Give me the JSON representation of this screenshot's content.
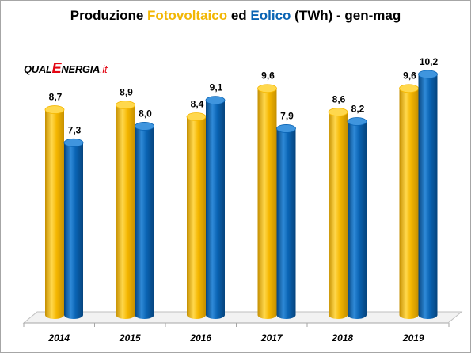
{
  "title": {
    "part1": "Produzione ",
    "part2": "Fotovoltaico",
    "part3": " ed ",
    "part4": "Eolico",
    "part5": " (TWh)",
    "part6": " - gen-mag"
  },
  "logo": {
    "prefix": "QUAL",
    "e": "E",
    "suffix": "NERGIA",
    "tld": ".it"
  },
  "colors": {
    "pv": "#f5b700",
    "pv_dark": "#c58f00",
    "wind": "#0a64b4",
    "wind_dark": "#06447d"
  },
  "chart_data": {
    "type": "bar",
    "categories": [
      "2014",
      "2015",
      "2016",
      "2017",
      "2018",
      "2019"
    ],
    "series": [
      {
        "name": "Fotovoltaico",
        "values": [
          8.7,
          8.9,
          8.4,
          9.6,
          8.6,
          9.6
        ],
        "labels": [
          "8,7",
          "8,9",
          "8,4",
          "9,6",
          "8,6",
          "9,6"
        ]
      },
      {
        "name": "Eolico",
        "values": [
          7.3,
          8.0,
          9.1,
          7.9,
          8.2,
          10.2
        ],
        "labels": [
          "7,3",
          "8,0",
          "9,1",
          "7,9",
          "8,2",
          "10,2"
        ]
      }
    ],
    "ylim": [
      0,
      11
    ],
    "grid": false,
    "legend": "none"
  }
}
